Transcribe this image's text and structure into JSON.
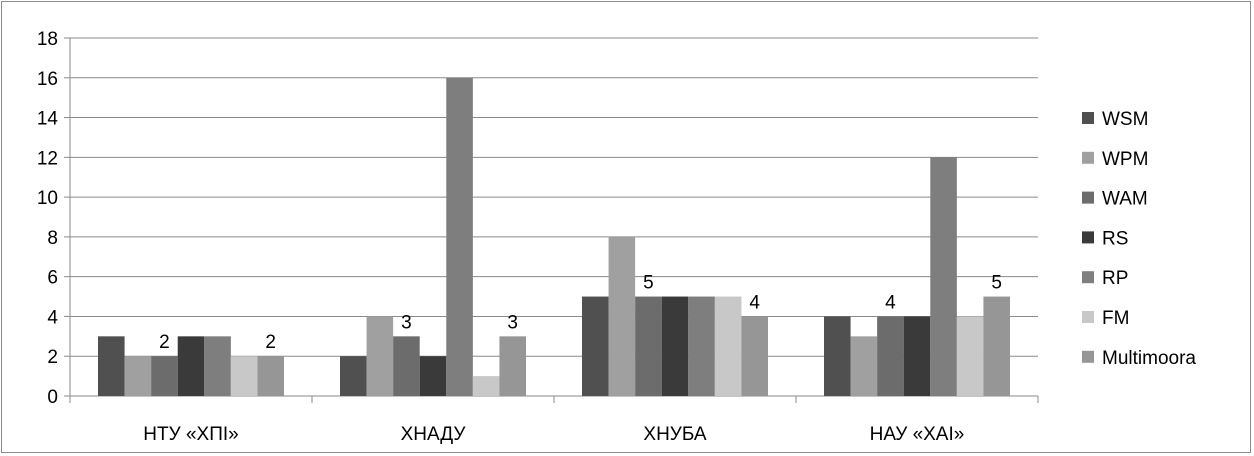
{
  "chart_data": {
    "type": "bar",
    "categories": [
      "НТУ «ХПІ»",
      "ХНАДУ",
      "ХНУБА",
      "НАУ «ХАІ»"
    ],
    "series": [
      {
        "name": "WSM",
        "values": [
          3,
          2,
          5,
          4
        ],
        "color": "#505050"
      },
      {
        "name": "WPM",
        "values": [
          2,
          4,
          8,
          3
        ],
        "color": "#a0a0a0"
      },
      {
        "name": "WAM",
        "values": [
          2,
          3,
          5,
          4
        ],
        "color": "#6c6c6c"
      },
      {
        "name": "RS",
        "values": [
          3,
          2,
          5,
          4
        ],
        "color": "#3a3a3a"
      },
      {
        "name": "RP",
        "values": [
          3,
          16,
          5,
          12
        ],
        "color": "#7e7e7e"
      },
      {
        "name": "FM",
        "values": [
          2,
          1,
          5,
          4
        ],
        "color": "#c8c8c8"
      },
      {
        "name": "Multimoora",
        "values": [
          2,
          3,
          4,
          5
        ],
        "color": "#969696"
      }
    ],
    "data_labels": [
      {
        "category_index": 0,
        "series_index": 2,
        "text": "2"
      },
      {
        "category_index": 0,
        "series_index": 6,
        "text": "2"
      },
      {
        "category_index": 1,
        "series_index": 2,
        "text": "3"
      },
      {
        "category_index": 1,
        "series_index": 6,
        "text": "3"
      },
      {
        "category_index": 2,
        "series_index": 2,
        "text": "5"
      },
      {
        "category_index": 2,
        "series_index": 6,
        "text": "4"
      },
      {
        "category_index": 3,
        "series_index": 2,
        "text": "4"
      },
      {
        "category_index": 3,
        "series_index": 6,
        "text": "5"
      }
    ],
    "y_ticks": [
      "0",
      "2",
      "4",
      "6",
      "8",
      "10",
      "12",
      "14",
      "16",
      "18"
    ],
    "ylim": [
      0,
      18
    ],
    "grid": true,
    "legend_position": "right",
    "title": "",
    "xlabel": "",
    "ylabel": ""
  }
}
